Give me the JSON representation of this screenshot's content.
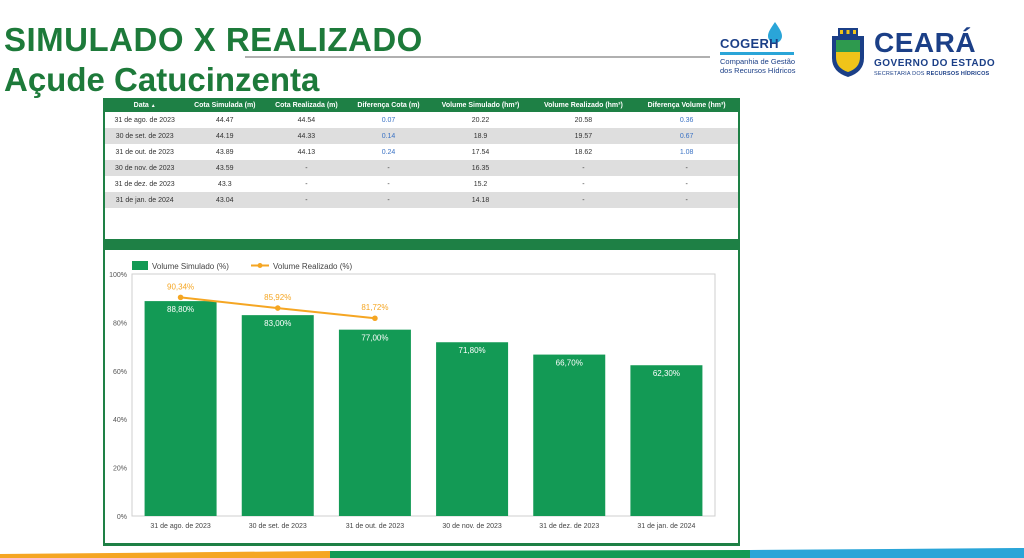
{
  "header": {
    "title_line1": "SIMULADO X REALIZADO",
    "title_line2": "Açude Catucinzenta"
  },
  "logos": {
    "cogerh_name": "COGERH",
    "cogerh_sub_line1": "Companhia de Gestão",
    "cogerh_sub_line2": "dos Recursos Hídricos",
    "state_name": "CEARÁ",
    "state_gov": "GOVERNO DO ESTADO",
    "state_secretariat_prefix": "SECRETARIA DOS",
    "state_secretariat_bold": "RECURSOS HÍDRICOS"
  },
  "colors": {
    "brand_green": "#1e8045",
    "bar_green": "#139a55",
    "line_orange": "#f5a623",
    "link_blue": "#3a72c4",
    "cogerh_blue": "#1b3f87"
  },
  "table": {
    "sort_indicator": "▲",
    "columns": [
      "Data",
      "Cota Simulada (m)",
      "Cota Realizada (m)",
      "Diferença Cota (m)",
      "Volume Simulado (hm³)",
      "Volume Realizado (hm³)",
      "Diferença Volume (hm³)"
    ],
    "rows": [
      [
        "31 de ago. de 2023",
        "44.47",
        "44.54",
        "0.07",
        "20.22",
        "20.58",
        "0.36"
      ],
      [
        "30 de set. de 2023",
        "44.19",
        "44.33",
        "0.14",
        "18.9",
        "19.57",
        "0.67"
      ],
      [
        "31 de out. de 2023",
        "43.89",
        "44.13",
        "0.24",
        "17.54",
        "18.62",
        "1.08"
      ],
      [
        "30 de nov. de 2023",
        "43.59",
        "-",
        "-",
        "16.35",
        "-",
        "-"
      ],
      [
        "31 de dez. de 2023",
        "43.3",
        "-",
        "-",
        "15.2",
        "-",
        "-"
      ],
      [
        "31 de jan. de 2024",
        "43.04",
        "-",
        "-",
        "14.18",
        "-",
        "-"
      ]
    ]
  },
  "chart_data": {
    "type": "bar",
    "categories": [
      "31 de ago. de 2023",
      "30 de set. de 2023",
      "31 de out. de 2023",
      "30 de nov. de 2023",
      "31 de dez. de 2023",
      "31 de jan. de 2024"
    ],
    "series": [
      {
        "name": "Volume Simulado (%)",
        "type": "bar",
        "values": [
          88.8,
          83.0,
          77.0,
          71.8,
          66.7,
          62.3
        ],
        "labels": [
          "88,80%",
          "83,00%",
          "77,00%",
          "71,80%",
          "66,70%",
          "62,30%"
        ]
      },
      {
        "name": "Volume Realizado (%)",
        "type": "line",
        "values": [
          90.34,
          85.92,
          81.72,
          null,
          null,
          null
        ],
        "labels": [
          "90,34%",
          "85,92%",
          "81,72%",
          null,
          null,
          null
        ]
      }
    ],
    "yticks": [
      "0%",
      "20%",
      "40%",
      "60%",
      "80%",
      "100%"
    ],
    "ylim": [
      0,
      100
    ],
    "legend": "top-left",
    "grid": false
  }
}
